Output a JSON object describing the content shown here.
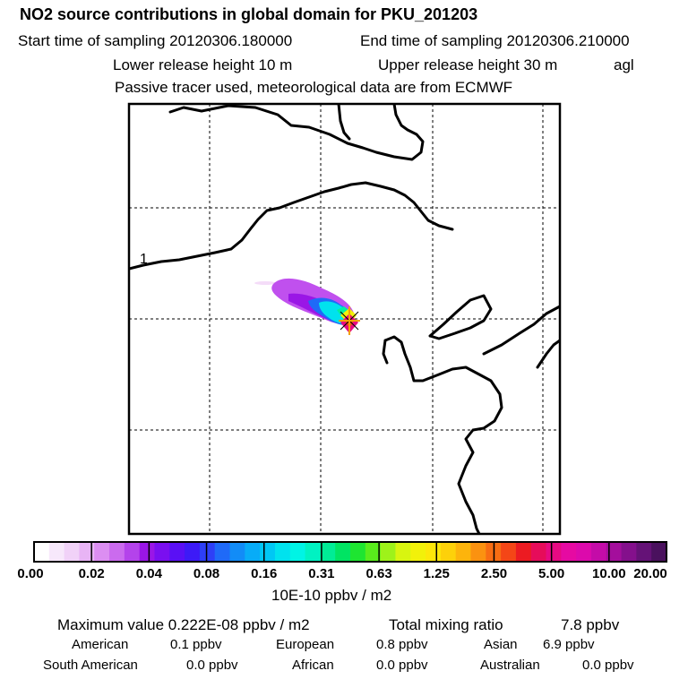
{
  "header": {
    "title": "NO2 source contributions in global domain for PKU_201203",
    "start_label": "Start time of sampling 20120306.180000",
    "end_label": "End time of sampling 20120306.210000",
    "lower_label": "Lower release height   10 m",
    "upper_label": "Upper release height   30 m",
    "agl": "agl",
    "tracer_line": "Passive tracer used, meteorological data are from ECMWF"
  },
  "map": {
    "contour_label": "1"
  },
  "colorbar": {
    "colors": [
      "#ffffff",
      "#f7e8fb",
      "#f1d2f8",
      "#e8b4f5",
      "#dc8ef2",
      "#cb6bee",
      "#b443eb",
      "#9a16e6",
      "#7a0ff0",
      "#5a10f5",
      "#3d1af7",
      "#2e3ff7",
      "#1f6af8",
      "#128cf7",
      "#08acf7",
      "#00c7f4",
      "#00e2ee",
      "#00f4e5",
      "#00f2c2",
      "#00ec96",
      "#00e463",
      "#1ee531",
      "#59ec1c",
      "#9ef21a",
      "#d8f510",
      "#f2f10a",
      "#fde80a",
      "#fdd10a",
      "#fdb40c",
      "#fb9210",
      "#f86d13",
      "#f44617",
      "#ec1b22",
      "#e60c5a",
      "#e60a82",
      "#e60aa2",
      "#dc0aac",
      "#c40ca8",
      "#a40e9c",
      "#84108c",
      "#651277",
      "#4a115e"
    ],
    "tick_labels": [
      "0.00",
      "0.02",
      "0.04",
      "0.08",
      "0.16",
      "0.31",
      "0.63",
      "1.25",
      "2.50",
      "5.00",
      "10.00",
      "20.00"
    ],
    "unit": "10E-10 ppbv / m2"
  },
  "summary": {
    "max_label": "Maximum value  0.222E-08 ppbv / m2",
    "total_label": "Total mixing ratio",
    "total_value": "7.8 ppbv",
    "regions": [
      {
        "name": "American",
        "value": "0.1 ppbv"
      },
      {
        "name": "European",
        "value": "0.8 ppbv"
      },
      {
        "name": "Asian",
        "value": "6.9 ppbv"
      },
      {
        "name": "South American",
        "value": "0.0 ppbv"
      },
      {
        "name": "African",
        "value": "0.0 ppbv"
      },
      {
        "name": "Australian",
        "value": "0.0 ppbv"
      }
    ]
  }
}
